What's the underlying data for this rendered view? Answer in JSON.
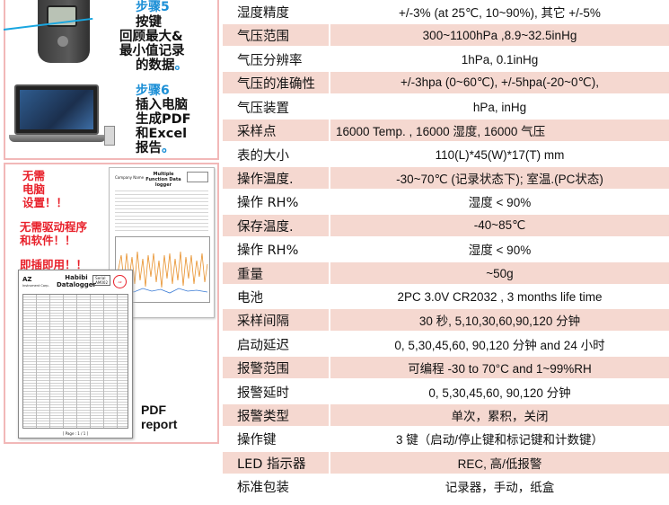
{
  "steps": {
    "step5": {
      "label": "步骤5",
      "lines": [
        "按键",
        "回顾最大&",
        "最小值记录",
        "的数据"
      ],
      "end_mark": "。"
    },
    "step6": {
      "label": "步骤6",
      "lines": [
        "插入电脑",
        "生成PDF",
        "和Excel",
        "报告"
      ],
      "end_mark": "。"
    }
  },
  "notes": {
    "no_pc": "无需\n电脑\n设置！！",
    "no_driver": "无需驱动程序\n和软件！！",
    "plug_play": "即插即用！！"
  },
  "report_back": {
    "title": "Multiple Function Data logger",
    "logo": "Company Name"
  },
  "report_front": {
    "brand": "AZ",
    "brand_sub": "Instrument Corp.",
    "title": "Habibi Datalogger",
    "serial_label": "Serial",
    "serial_value": "AM002",
    "seal": "AZ",
    "footer": "[ Page : 1 / 1 ]"
  },
  "pdf_label": [
    "PDF",
    "report"
  ],
  "specs": [
    {
      "label": "湿度精度",
      "value": "+/-3% (at 25℃, 10~90%), 其它 +/-5%",
      "shaded": false
    },
    {
      "label": "气压范围",
      "value": "300~1100hPa ,8.9~32.5inHg",
      "shaded": true
    },
    {
      "label": "气压分辨率",
      "value": "1hPa, 0.1inHg",
      "shaded": false
    },
    {
      "label": "气压的准确性",
      "value": "+/-3hpa (0~60℃), +/-5hpa(-20~0℃),",
      "shaded": true
    },
    {
      "label": "气压装置",
      "value": "hPa, inHg",
      "shaded": false
    },
    {
      "label": "采样点",
      "value": "16000 Temp. , 16000 湿度, 16000 气压",
      "shaded": true,
      "align": "left"
    },
    {
      "label": "表的大小",
      "value": "110(L)*45(W)*17(T) mm",
      "shaded": false
    },
    {
      "label": "操作温度.",
      "value": "-30~70℃ (记录状态下); 室温.(PC状态)",
      "shaded": true
    },
    {
      "label": "操作 RH%",
      "value": "湿度 < 90%",
      "shaded": false
    },
    {
      "label": "保存温度.",
      "value": "-40~85℃",
      "shaded": true
    },
    {
      "label": "操作 RH%",
      "value": "湿度 < 90%",
      "shaded": false
    },
    {
      "label": "重量",
      "value": "~50g",
      "shaded": true
    },
    {
      "label": "电池",
      "value": "2PC 3.0V CR2032 , 3 months life time",
      "shaded": false
    },
    {
      "label": "采样间隔",
      "value": "30 秒, 5,10,30,60,90,120 分钟",
      "shaded": true
    },
    {
      "label": "启动延迟",
      "value": "0, 5,30,45,60, 90,120 分钟 and 24 小时",
      "shaded": false
    },
    {
      "label": "报警范围",
      "value": "可编程 -30 to 70°C and 1~99%RH",
      "shaded": true
    },
    {
      "label": "报警延时",
      "value": "0, 5,30,45,60, 90,120 分钟",
      "shaded": false
    },
    {
      "label": "报警类型",
      "value": "单次，累积，关闭",
      "shaded": true
    },
    {
      "label": "操作键",
      "value": "3 键（启动/停止键和标记键和计数键）",
      "shaded": false
    },
    {
      "label": "LED 指示器",
      "value": "REC, 高/低报警",
      "shaded": true
    },
    {
      "label": "标准包装",
      "value": "记录器，手动，纸盒",
      "shaded": false
    }
  ]
}
